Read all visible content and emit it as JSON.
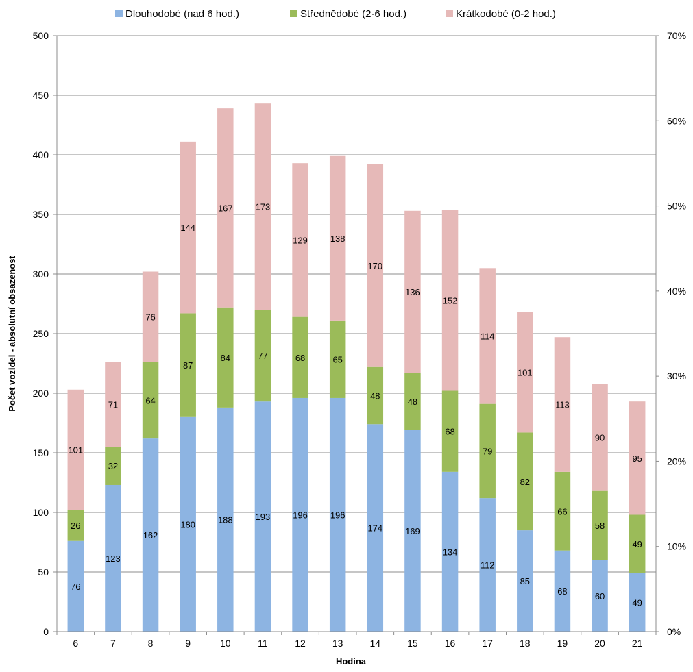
{
  "chart_data": {
    "type": "bar",
    "stacked": true,
    "categories": [
      "6",
      "7",
      "8",
      "9",
      "10",
      "11",
      "12",
      "13",
      "14",
      "15",
      "16",
      "17",
      "18",
      "19",
      "20",
      "21"
    ],
    "series": [
      {
        "name": "Dlouhodobé (nad 6 hod.)",
        "color": "#8DB4E2",
        "values": [
          76,
          123,
          162,
          180,
          188,
          193,
          196,
          196,
          174,
          169,
          134,
          112,
          85,
          68,
          60,
          49
        ]
      },
      {
        "name": "Střednědobé (2-6 hod.)",
        "color": "#9BBB59",
        "values": [
          26,
          32,
          64,
          87,
          84,
          77,
          68,
          65,
          48,
          48,
          68,
          79,
          82,
          66,
          58,
          49
        ]
      },
      {
        "name": "Krátkodobé (0-2 hod.)",
        "color": "#E6B9B8",
        "values": [
          101,
          71,
          76,
          144,
          167,
          173,
          129,
          138,
          170,
          136,
          152,
          114,
          101,
          113,
          90,
          95
        ]
      }
    ],
    "xlabel": "Hodina",
    "ylabel": "Počet vozidel - absolutní obsazenost",
    "ylim": [
      0,
      500
    ],
    "yticks": [
      0,
      50,
      100,
      150,
      200,
      250,
      300,
      350,
      400,
      450,
      500
    ],
    "y2lim": [
      0,
      0.7
    ],
    "y2ticks": [
      "0%",
      "10%",
      "20%",
      "30%",
      "40%",
      "50%",
      "60%",
      "70%"
    ],
    "legend_position": "top",
    "grid": true
  }
}
